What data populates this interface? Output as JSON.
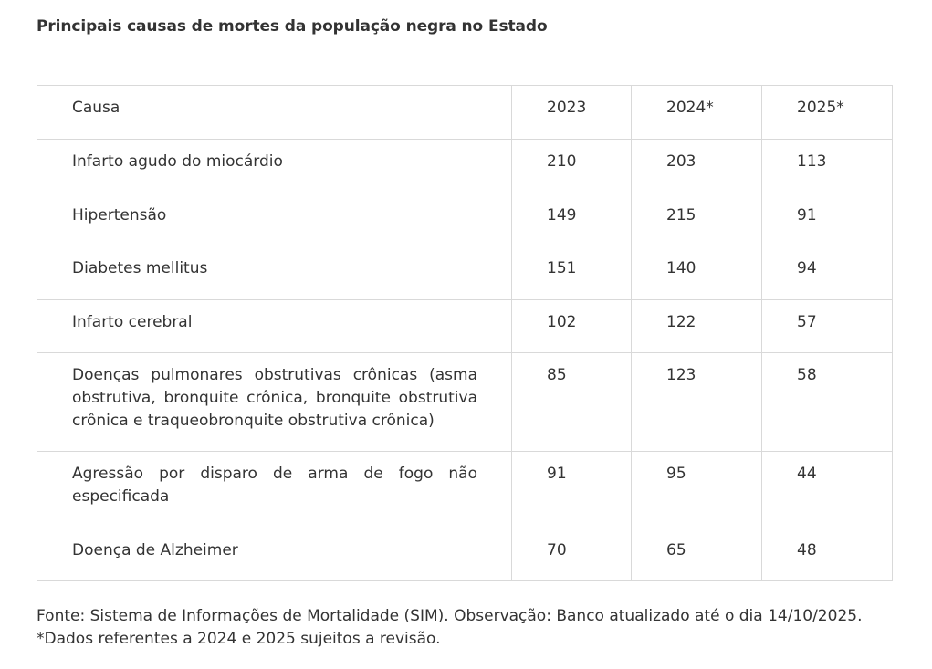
{
  "title": "Principais causas de mortes da população negra no Estado",
  "table": {
    "headers": [
      "Causa",
      "2023",
      "2024*",
      "2025*"
    ],
    "rows": [
      [
        "Infarto agudo do miocárdio",
        "210",
        "203",
        "113"
      ],
      [
        "Hipertensão",
        "149",
        "215",
        "91"
      ],
      [
        "Diabetes mellitus",
        "151",
        "140",
        "94"
      ],
      [
        "Infarto cerebral",
        "102",
        "122",
        "57"
      ],
      [
        "Doenças pulmonares obstrutivas crônicas (asma obstrutiva, bronquite crônica, bronquite obstrutiva crônica e traqueobronquite obstrutiva crônica)",
        "85",
        "123",
        "58"
      ],
      [
        "Agressão por disparo de arma de fogo não especificada",
        "91",
        "95",
        "44"
      ],
      [
        "Doença de Alzheimer",
        "70",
        "65",
        "48"
      ]
    ]
  },
  "footer": {
    "source": "Fonte: Sistema de Informações de Mortalidade (SIM). Observação: Banco atualizado até o dia 14/10/2025.",
    "note": "*Dados referentes a 2024 e 2025 sujeitos a revisão."
  }
}
